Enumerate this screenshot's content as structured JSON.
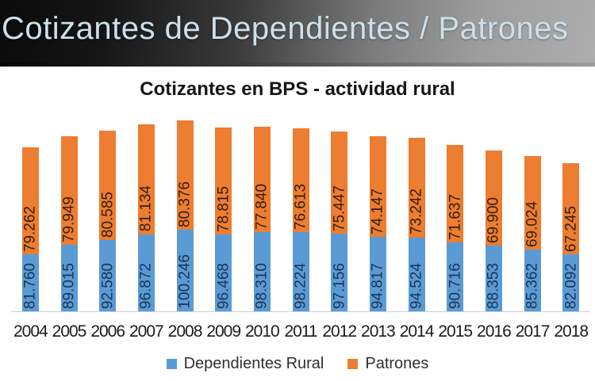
{
  "header": {
    "title": "Cotizantes de Dependientes / Patrones"
  },
  "chart_data": {
    "type": "bar",
    "stacked": true,
    "title": "Cotizantes en BPS - actividad rural",
    "xlabel": "",
    "ylabel": "",
    "grid": false,
    "legend_position": "bottom",
    "categories": [
      "2004",
      "2005",
      "2006",
      "2007",
      "2008",
      "2009",
      "2010",
      "2011",
      "2012",
      "2013",
      "2014",
      "2015",
      "2016",
      "2017",
      "2018"
    ],
    "series": [
      {
        "name": "Dependientes Rural",
        "color": "#5B9BD5",
        "label_color": "#1A3354",
        "values": [
          81760,
          89015,
          92580,
          96872,
          100246,
          96468,
          98310,
          98224,
          97156,
          94817,
          94524,
          90716,
          88353,
          85362,
          82092
        ],
        "labels": [
          "81.760",
          "89.015",
          "92.580",
          "96.872",
          "100.246",
          "96.468",
          "98.310",
          "98.224",
          "97.156",
          "94.817",
          "94.524",
          "90.716",
          "88.353",
          "85.362",
          "82.092"
        ]
      },
      {
        "name": "Patrones",
        "color": "#ED7D31",
        "label_color": "#33200E",
        "values": [
          79262,
          79949,
          80585,
          81134,
          80376,
          78815,
          77840,
          76613,
          75447,
          74147,
          73242,
          71637,
          69900,
          69024,
          67245
        ],
        "labels": [
          "79.262",
          "79.949",
          "80.585",
          "81.134",
          "80.376",
          "78.815",
          "77.840",
          "76.613",
          "75.447",
          "74.147",
          "73.242",
          "71.637",
          "69.900",
          "69.024",
          "67.245"
        ]
      }
    ],
    "value_axis": {
      "visible_min": 40000,
      "max_total": 180622
    }
  }
}
